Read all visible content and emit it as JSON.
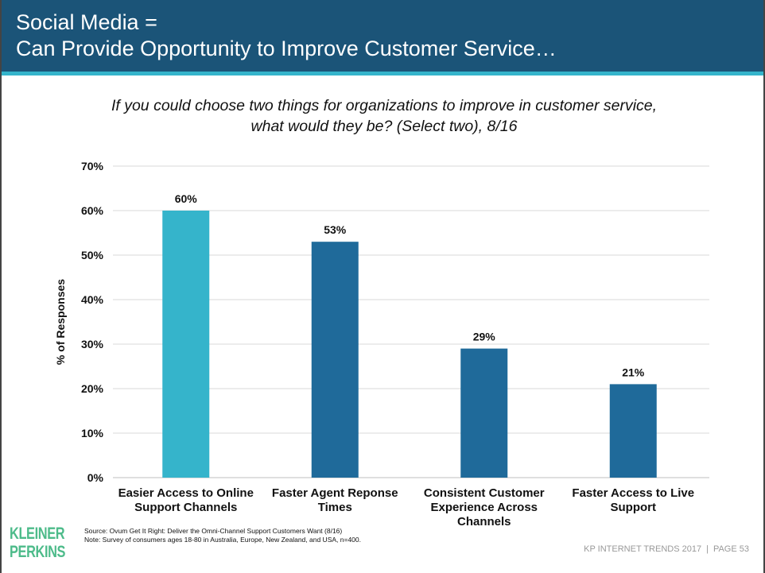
{
  "header": {
    "title_line1": "Social Media =",
    "title_line2": "Can Provide Opportunity to Improve Customer Service…"
  },
  "colors": {
    "header": "#1b5478",
    "accent": "#35b4cb",
    "bar_highlight": "#35b4cb",
    "bar": "#1f6a9a"
  },
  "chart_data": {
    "type": "bar",
    "title": "If you could choose two things for organizations to improve in customer service, what would they be? (Select two), 8/16",
    "title_line1": "If you could choose two things for organizations to improve in customer service,",
    "title_line2": "what would they be? (Select two), 8/16",
    "ylabel": "% of Responses",
    "ylim": [
      0,
      70
    ],
    "yticks": [
      "0%",
      "10%",
      "20%",
      "30%",
      "40%",
      "50%",
      "60%",
      "70%"
    ],
    "grid": true,
    "categories": [
      [
        "Easier Access to Online",
        "Support Channels"
      ],
      [
        "Faster Agent Reponse",
        "Times"
      ],
      [
        "Consistent Customer",
        "Experience Across",
        "Channels"
      ],
      [
        "Faster Access to Live",
        "Support"
      ]
    ],
    "values": [
      60,
      53,
      29,
      21
    ],
    "data_labels": [
      "60%",
      "53%",
      "29%",
      "21%"
    ]
  },
  "footer": {
    "source": "Source: Ovum Get It Right: Deliver the Omni-Channel Support Customers Want (8/16)",
    "note": "Note: Survey of consumers ages 18-80 in Australia, Europe, New Zealand, and USA, n=400.",
    "logo_line1": "KLEINER",
    "logo_line2": "PERKINS",
    "report": "KP INTERNET TRENDS 2017",
    "separator": "|",
    "page": "PAGE 53"
  }
}
